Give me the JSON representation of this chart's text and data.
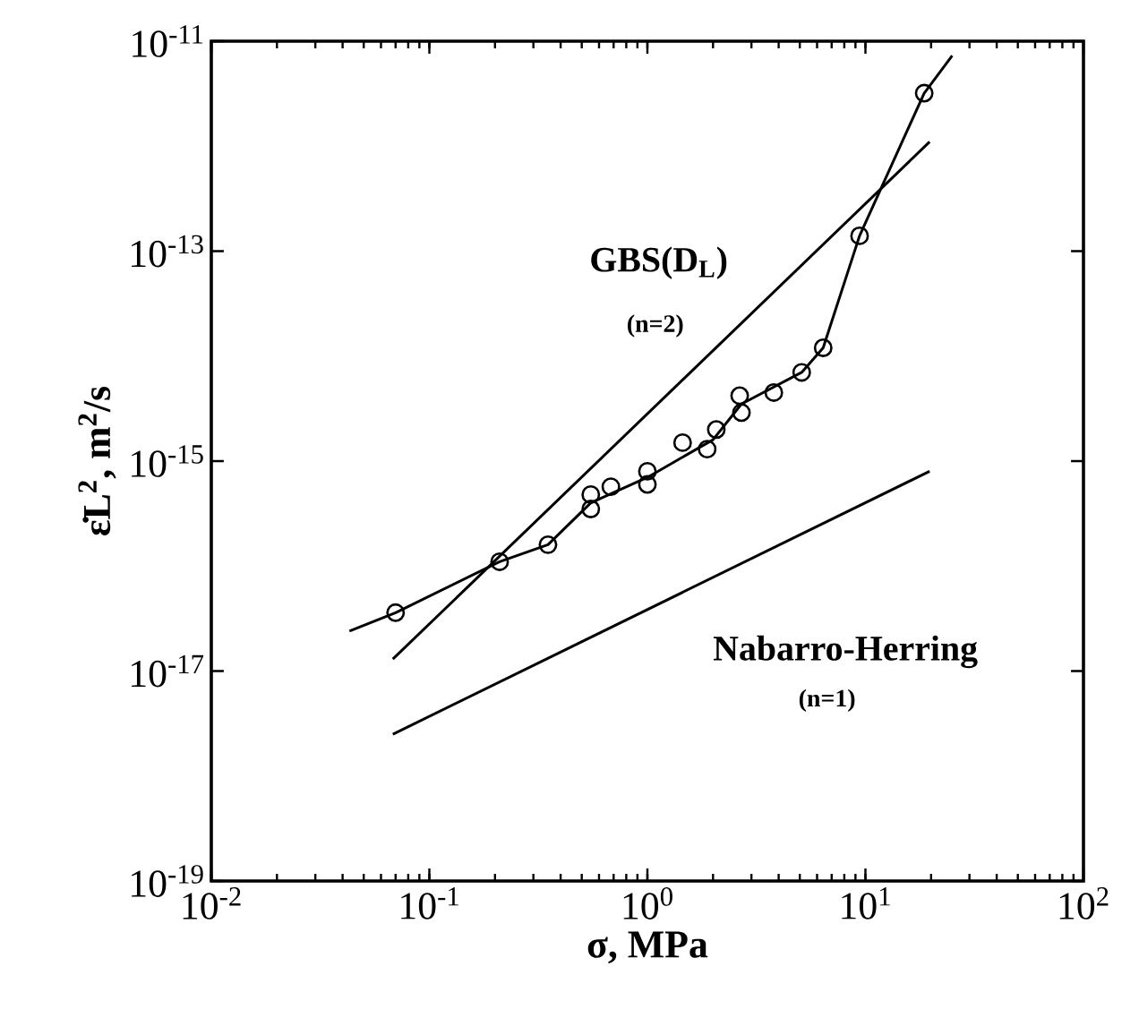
{
  "chart_data": {
    "type": "scatter",
    "xlabel": "σ, MPa",
    "ylabel": "ε̇L$^{2}$, m$^{2}$/s",
    "log": "xy",
    "xlim": [
      0.01,
      100
    ],
    "ylim": [
      1e-19,
      1e-11
    ],
    "xticks": [
      {
        "value": 0.01,
        "label": "10$^{-2}$"
      },
      {
        "value": 0.1,
        "label": "10$^{-1}$"
      },
      {
        "value": 1,
        "label": "10$^{0}$"
      },
      {
        "value": 10,
        "label": "10$^{1}$"
      },
      {
        "value": 100,
        "label": "10$^{2}$"
      }
    ],
    "yticks": [
      {
        "value": 1e-19,
        "label": "10$^{-19}$"
      },
      {
        "value": 1e-17,
        "label": "10$^{-17}$"
      },
      {
        "value": 1e-15,
        "label": "10$^{-15}$"
      },
      {
        "value": 1e-13,
        "label": "10$^{-13}$"
      },
      {
        "value": 1e-11,
        "label": "10$^{-11}$"
      }
    ],
    "series": [
      {
        "marker": "circle",
        "color": "#000000",
        "x": [
          0.07,
          0.21,
          0.35,
          0.55,
          0.55,
          0.68,
          1.0,
          1.0,
          1.45,
          1.88,
          2.07,
          2.65,
          2.7,
          3.8,
          5.1,
          6.4,
          9.4,
          18.6
        ],
        "values": [
          3.6e-17,
          1.1e-16,
          1.6e-16,
          4.8e-16,
          3.5e-16,
          5.7e-16,
          8e-16,
          6e-16,
          1.5e-15,
          1.3e-15,
          2e-15,
          4.2e-15,
          2.9e-15,
          4.5e-15,
          7e-15,
          1.2e-14,
          1.4e-13,
          3.2e-12
        ]
      },
      {
        "type": "line",
        "marker": "none",
        "color": "#000000",
        "x": [
          0.043,
          0.07,
          0.21,
          0.35,
          0.55,
          1.0,
          2.0,
          2.7,
          5.1,
          6.4,
          9.4,
          18.6,
          25
        ],
        "values": [
          2.4e-17,
          3.6e-17,
          1.1e-16,
          1.6e-16,
          4e-16,
          7e-16,
          1.6e-15,
          3.5e-15,
          7e-15,
          1.2e-14,
          1.4e-13,
          3.2e-12,
          7.3e-12
        ]
      },
      {
        "type": "line",
        "marker": "none",
        "color": "#000000",
        "x": [
          0.068,
          19.7
        ],
        "values": [
          1.3e-17,
          1.1e-12
        ]
      },
      {
        "type": "line",
        "marker": "none",
        "color": "#000000",
        "x": [
          0.068,
          19.7
        ],
        "values": [
          2.5e-18,
          8e-16
        ]
      }
    ],
    "annotations": [
      "GBS(D$_{L}$)",
      "(n=2)",
      "Nabarro-Herring",
      "(n=1)"
    ]
  }
}
